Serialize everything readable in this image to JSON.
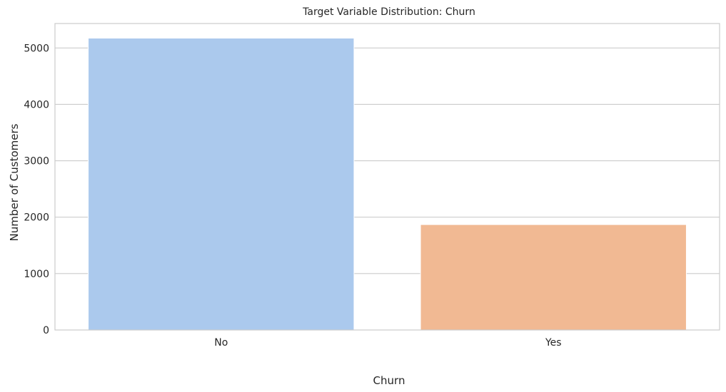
{
  "chart_data": {
    "type": "bar",
    "title": "Target Variable Distribution: Churn",
    "xlabel": "Churn",
    "ylabel": "Number of Customers",
    "categories": [
      "No",
      "Yes"
    ],
    "values": [
      5174,
      1869
    ],
    "colors": [
      "#abc9ed",
      "#f1b993"
    ],
    "ylim": [
      0,
      5433
    ],
    "yticks": [
      0,
      1000,
      2000,
      3000,
      4000,
      5000
    ],
    "grid": "horizontal",
    "legend": "none"
  },
  "style": {
    "grid_color": "#cccccc",
    "spine_color": "#cccccc",
    "text_color": "#262626"
  }
}
